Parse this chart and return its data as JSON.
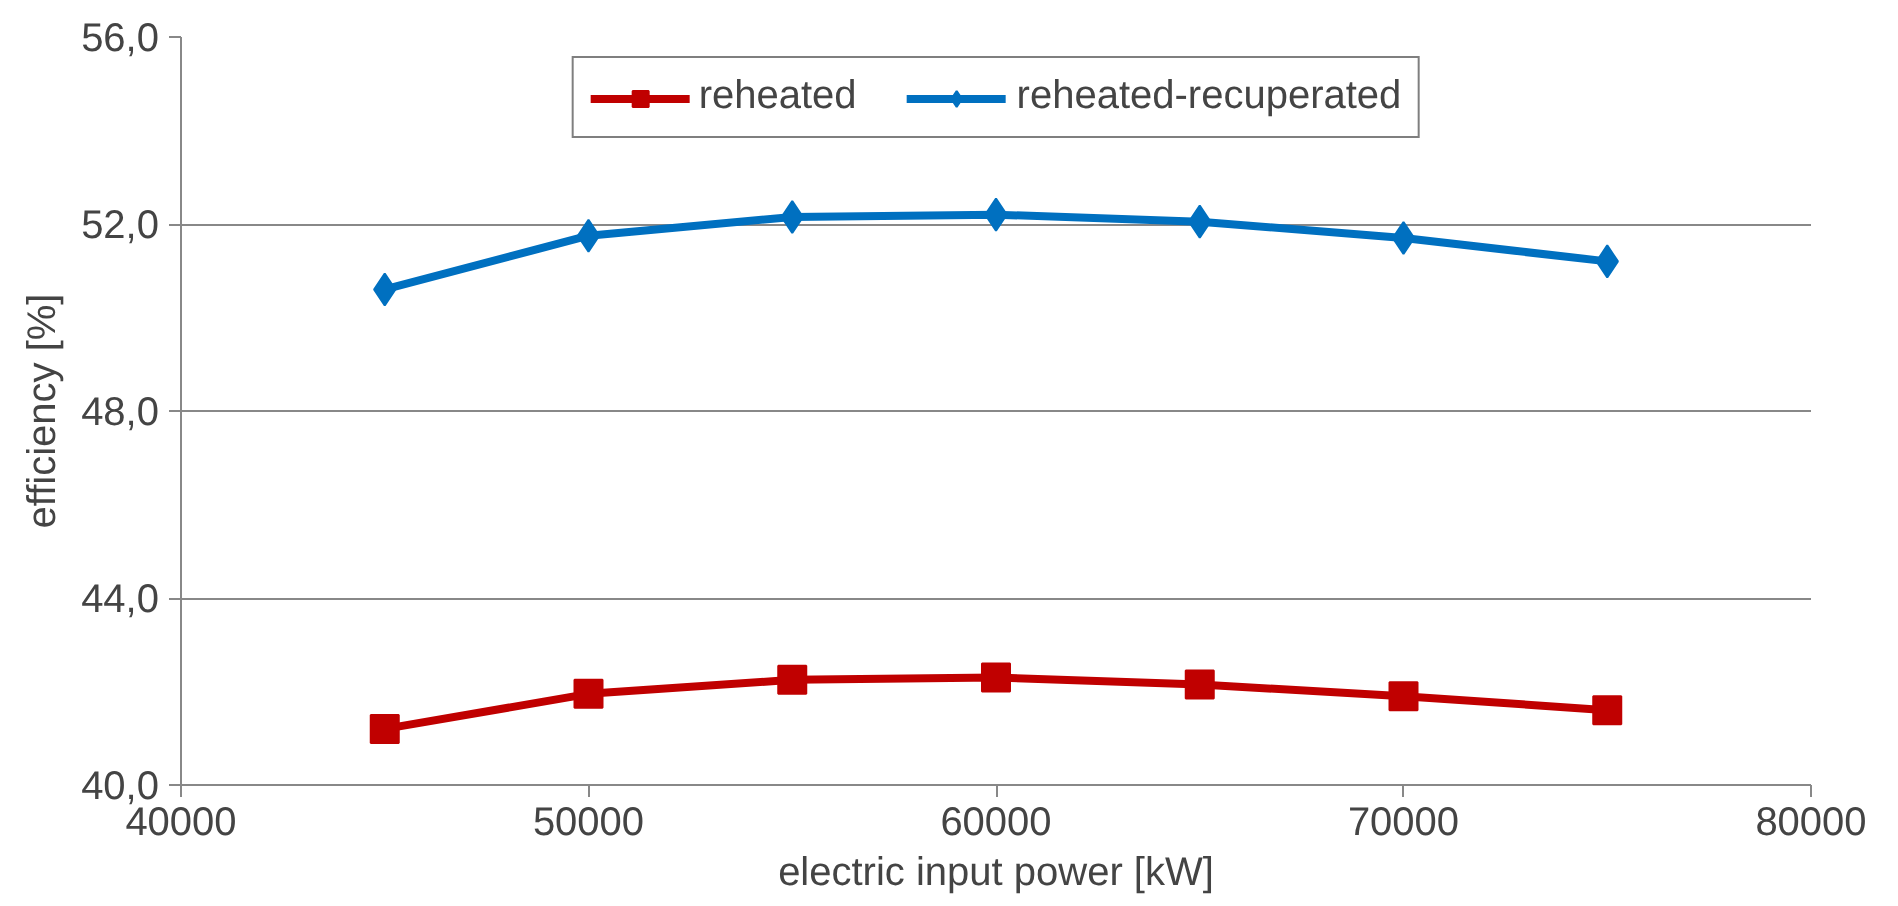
{
  "chart_data": {
    "type": "line",
    "xlabel": "electric input power [kW]",
    "ylabel": "efficiency [%]",
    "x": [
      45000,
      50000,
      55000,
      60000,
      65000,
      70000,
      75000
    ],
    "series": [
      {
        "name": "reheated",
        "color": "#c00000",
        "marker": "square",
        "values": [
          41.2,
          41.95,
          42.25,
          42.3,
          42.15,
          41.9,
          41.6
        ]
      },
      {
        "name": "reheated-recuperated",
        "color": "#0070c0",
        "marker": "diamond",
        "values": [
          50.6,
          51.75,
          52.15,
          52.2,
          52.05,
          51.7,
          51.2
        ]
      }
    ],
    "xlim": [
      40000,
      80000
    ],
    "xticks": [
      40000,
      50000,
      60000,
      70000,
      80000
    ],
    "ylim": [
      40,
      56
    ],
    "yticks": [
      {
        "value": 40,
        "label": "40,0"
      },
      {
        "value": 44,
        "label": "44,0"
      },
      {
        "value": 48,
        "label": "48,0"
      },
      {
        "value": 52,
        "label": "52,0"
      },
      {
        "value": 56,
        "label": "56,0"
      }
    ],
    "grid": "y",
    "legend": "top",
    "line_style": "solid"
  }
}
